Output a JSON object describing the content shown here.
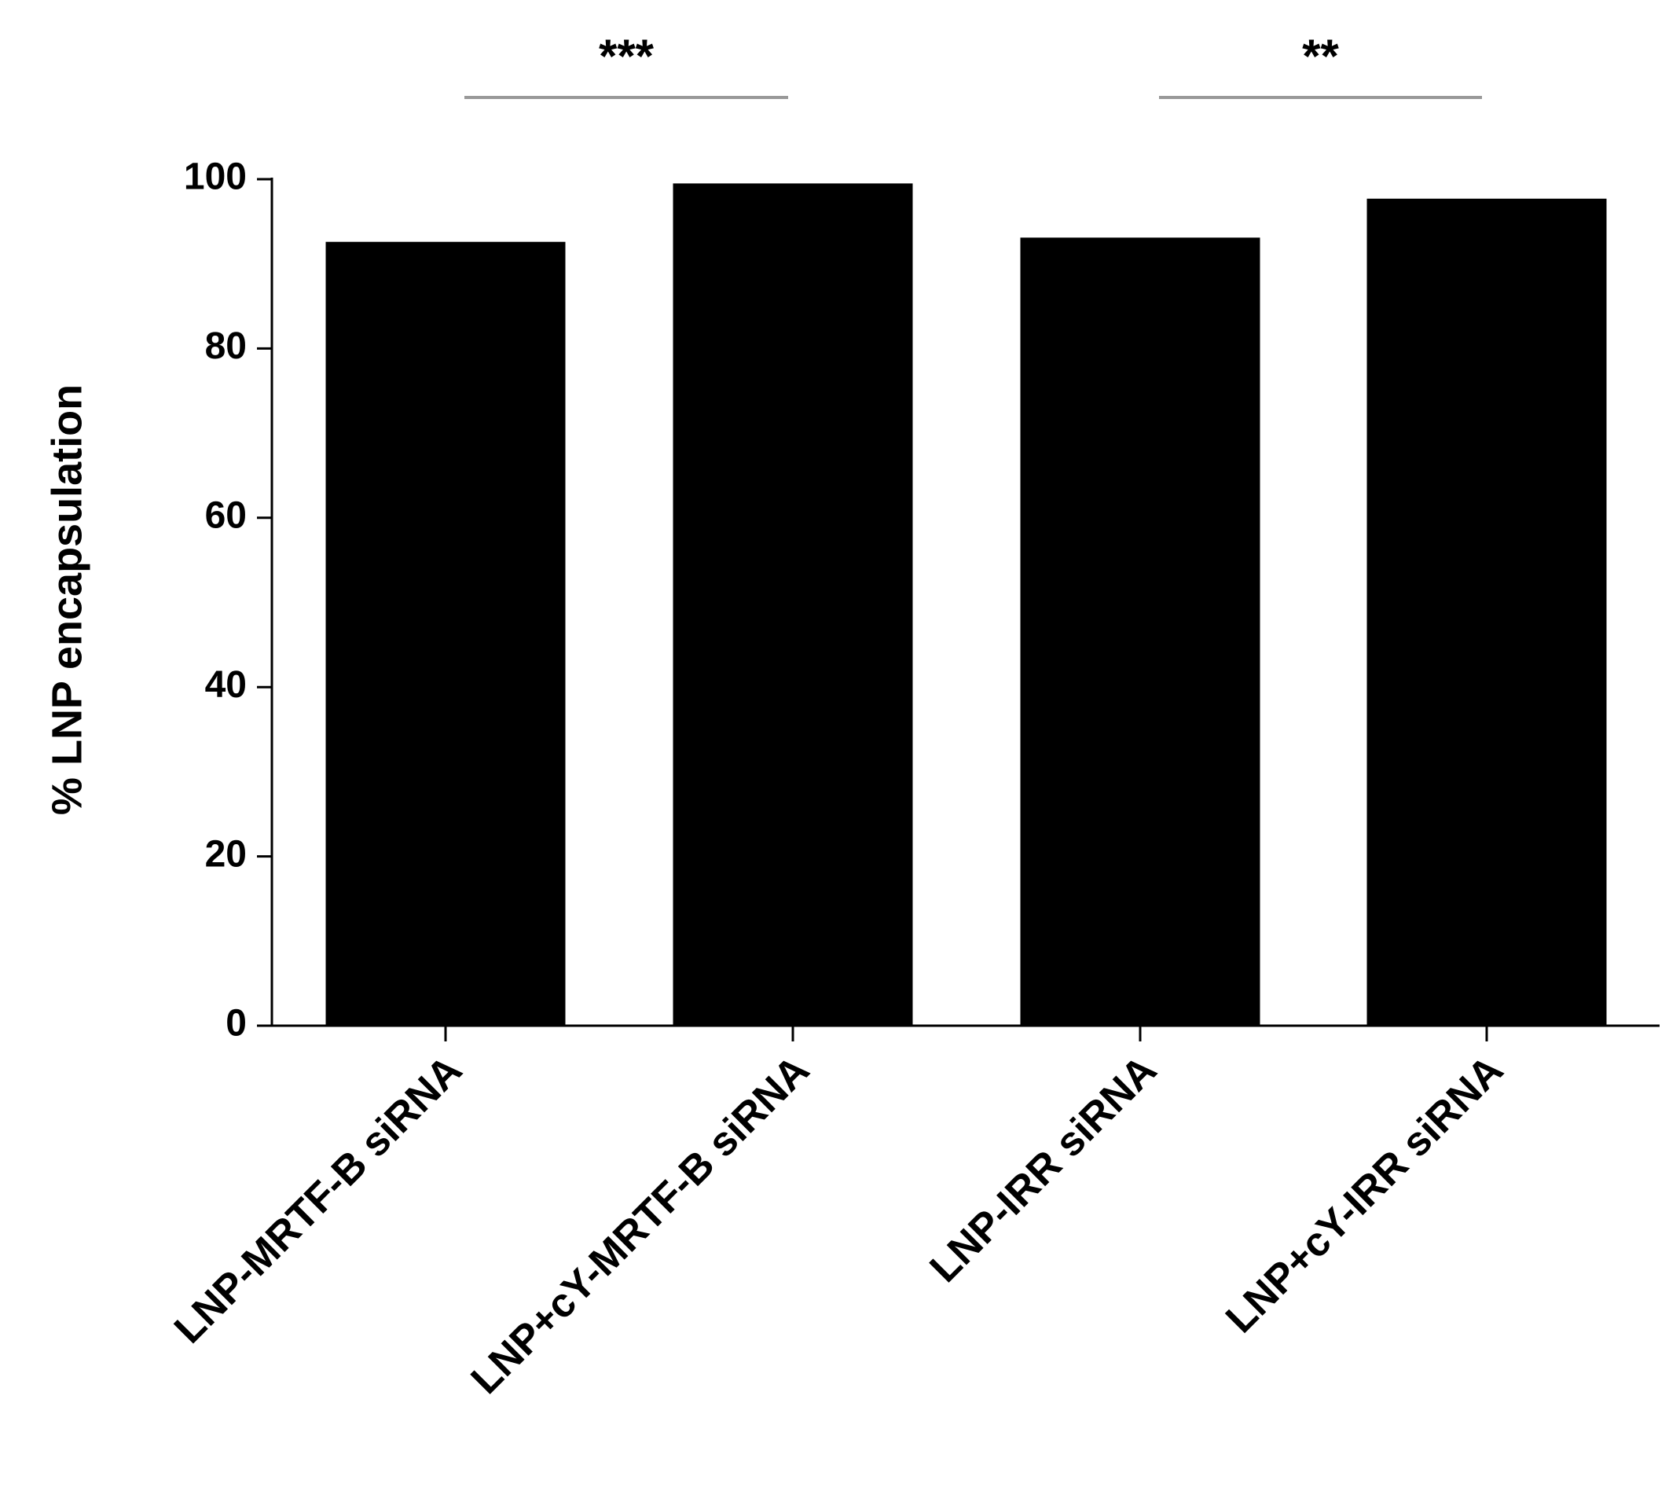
{
  "chart_data": {
    "type": "bar",
    "y_label": "% LNP encapsulation",
    "categories": [
      "LNP-MRTF-B siRNA",
      "LNP+cY-MRTF-B siRNA",
      "LNP-IRR siRNA",
      "LNP+cY-IRR siRNA"
    ],
    "values": [
      92.6,
      99.5,
      93.1,
      97.7
    ],
    "color": "#000000",
    "ylim": [
      0,
      100
    ],
    "yticks": [
      0,
      20,
      40,
      60,
      80,
      100
    ],
    "annotations": [
      "***",
      "**"
    ]
  }
}
